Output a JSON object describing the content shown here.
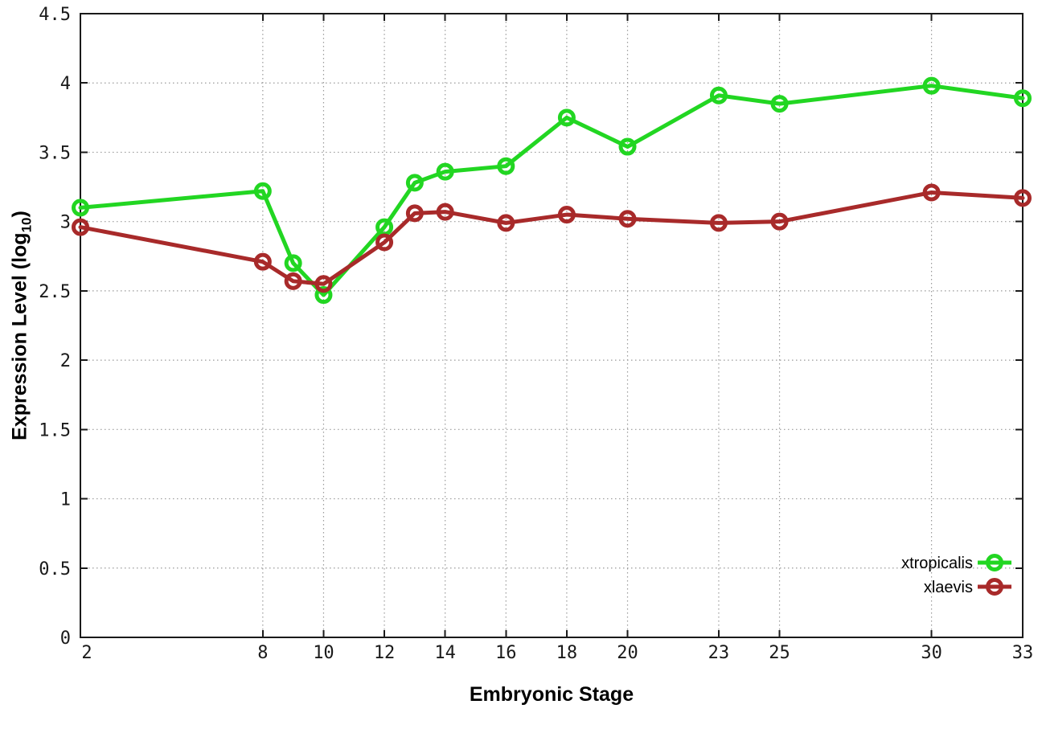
{
  "chart_data": {
    "type": "line",
    "title": "",
    "xlabel": "Embryonic Stage",
    "ylabel": {
      "prefix": "Expression Level (log",
      "sub": "10",
      "suffix": ")"
    },
    "xlim": [
      2,
      33
    ],
    "ylim": [
      0,
      4.5
    ],
    "x_ticks": [
      2,
      8,
      10,
      12,
      14,
      16,
      18,
      20,
      23,
      25,
      30,
      33
    ],
    "y_ticks": [
      0,
      0.5,
      1,
      1.5,
      2,
      2.5,
      3,
      3.5,
      4,
      4.5
    ],
    "grid": true,
    "legend_position": "inside-bottom-right",
    "x": [
      2,
      8,
      9,
      10,
      12,
      13,
      14,
      16,
      18,
      20,
      23,
      25,
      30,
      33
    ],
    "series": [
      {
        "name": "xtropicalis",
        "color": "#22d622",
        "values": [
          3.1,
          3.22,
          2.7,
          2.47,
          2.96,
          3.28,
          3.36,
          3.4,
          3.75,
          3.54,
          3.91,
          3.85,
          3.98,
          3.89
        ]
      },
      {
        "name": "xlaevis",
        "color": "#a82a2a",
        "values": [
          2.96,
          2.71,
          2.57,
          2.55,
          2.85,
          3.06,
          3.07,
          2.99,
          3.05,
          3.02,
          2.99,
          3.0,
          3.21,
          3.17
        ]
      }
    ],
    "colors": {
      "axis": "#1a1a1a",
      "grid": "#9a9a9a",
      "tick_label": "#1a1a1a",
      "background": "#ffffff"
    }
  }
}
